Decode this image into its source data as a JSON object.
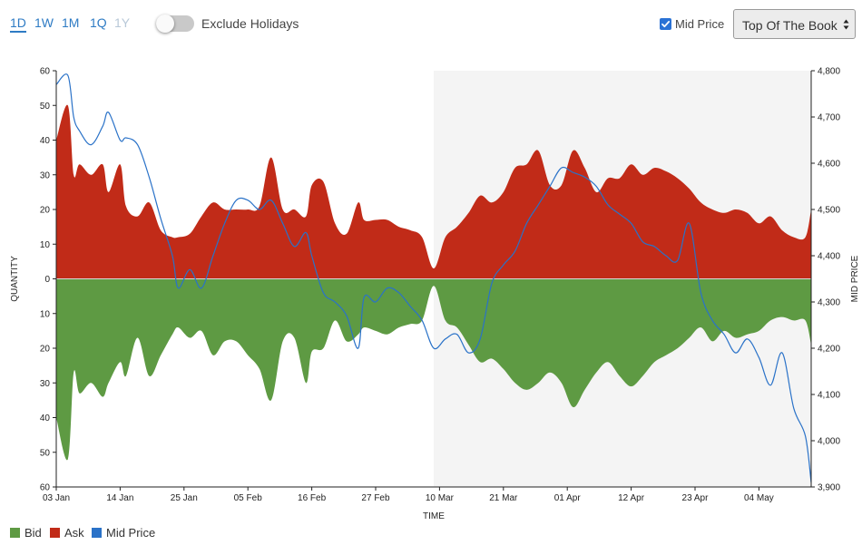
{
  "toolbar": {
    "ranges": [
      "1D",
      "1W",
      "1M",
      "1Q",
      "1Y"
    ],
    "exclude_holidays_label": "Exclude Holidays",
    "mid_price_label": "Mid Price",
    "book_select_value": "Top Of The Book"
  },
  "colors": {
    "bid": "#5e9a43",
    "ask": "#c12b18",
    "mid_price": "#2a72c8",
    "accent": "#2e7bc4",
    "highlight_band": "#f4f4f4"
  },
  "chart_data": {
    "type": "area",
    "xlabel": "TIME",
    "ylabel_left": "QUANTITY",
    "ylabel_right": "MID PRICE",
    "x_ticks": [
      "03 Jan",
      "14 Jan",
      "25 Jan",
      "05 Feb",
      "16 Feb",
      "27 Feb",
      "10 Mar",
      "21 Mar",
      "01 Apr",
      "12 Apr",
      "23 Apr",
      "04 May"
    ],
    "left_ticks": [
      "60",
      "50",
      "40",
      "30",
      "20",
      "10",
      "0",
      "10",
      "20",
      "30",
      "40",
      "50",
      "60"
    ],
    "right_ticks": [
      "4,800",
      "4,700",
      "4,600",
      "4,500",
      "4,400",
      "4,300",
      "4,200",
      "4,100",
      "4,000",
      "3,900"
    ],
    "quantity_range": [
      -60,
      60
    ],
    "price_range": [
      3900,
      4800
    ],
    "x_range": [
      "2019-01-03",
      "2019-05-13"
    ],
    "highlight_range": [
      "2019-03-09",
      "2019-05-13"
    ],
    "legend": [
      "Bid",
      "Ask",
      "Mid Price"
    ],
    "x": [
      "2019-01-03",
      "2019-01-05",
      "2019-01-06",
      "2019-01-07",
      "2019-01-09",
      "2019-01-11",
      "2019-01-12",
      "2019-01-14",
      "2019-01-15",
      "2019-01-17",
      "2019-01-19",
      "2019-01-21",
      "2019-01-23",
      "2019-01-24",
      "2019-01-26",
      "2019-01-28",
      "2019-01-30",
      "2019-02-01",
      "2019-02-03",
      "2019-02-05",
      "2019-02-07",
      "2019-02-09",
      "2019-02-11",
      "2019-02-13",
      "2019-02-15",
      "2019-02-16",
      "2019-02-18",
      "2019-02-20",
      "2019-02-22",
      "2019-02-24",
      "2019-02-25",
      "2019-02-27",
      "2019-03-01",
      "2019-03-03",
      "2019-03-05",
      "2019-03-07",
      "2019-03-09",
      "2019-03-11",
      "2019-03-13",
      "2019-03-15",
      "2019-03-17",
      "2019-03-19",
      "2019-03-21",
      "2019-03-23",
      "2019-03-25",
      "2019-03-27",
      "2019-03-29",
      "2019-03-31",
      "2019-04-02",
      "2019-04-04",
      "2019-04-06",
      "2019-04-08",
      "2019-04-10",
      "2019-04-12",
      "2019-04-14",
      "2019-04-16",
      "2019-04-18",
      "2019-04-20",
      "2019-04-22",
      "2019-04-24",
      "2019-04-26",
      "2019-04-28",
      "2019-04-30",
      "2019-05-02",
      "2019-05-04",
      "2019-05-06",
      "2019-05-08",
      "2019-05-10",
      "2019-05-12",
      "2019-05-13"
    ],
    "series": [
      {
        "name": "Ask",
        "values": [
          40,
          50,
          30,
          33,
          30,
          33,
          25,
          33,
          21,
          18,
          22,
          14,
          12,
          12,
          13,
          18,
          22,
          20,
          20,
          20,
          21,
          35,
          20,
          20,
          18,
          27,
          28,
          16,
          13,
          22,
          17,
          17,
          17,
          15,
          14,
          12,
          3,
          12,
          15,
          19,
          24,
          22,
          25,
          32,
          33,
          37,
          27,
          27,
          37,
          32,
          25,
          29,
          29,
          33,
          30,
          32,
          31,
          29,
          26,
          22,
          20,
          19,
          20,
          19,
          16,
          18,
          14,
          12,
          12,
          20
        ]
      },
      {
        "name": "Bid",
        "values": [
          -40,
          -52,
          -27,
          -33,
          -30,
          -34,
          -30,
          -24,
          -28,
          -17,
          -28,
          -22,
          -16,
          -14,
          -17,
          -15,
          -22,
          -18,
          -18,
          -22,
          -26,
          -35,
          -18,
          -17,
          -30,
          -21,
          -20,
          -12,
          -18,
          -16,
          -14,
          -15,
          -16,
          -14,
          -13,
          -12,
          -2,
          -12,
          -14,
          -19,
          -24,
          -23,
          -26,
          -30,
          -32,
          -30,
          -27,
          -30,
          -37,
          -32,
          -27,
          -24,
          -28,
          -31,
          -28,
          -24,
          -22,
          -20,
          -17,
          -14,
          -18,
          -15,
          -17,
          -16,
          -15,
          -12,
          -11,
          -12,
          -12,
          -19
        ]
      },
      {
        "name": "Mid Price",
        "values": [
          4770,
          4790,
          4700,
          4670,
          4640,
          4680,
          4710,
          4650,
          4655,
          4640,
          4570,
          4480,
          4400,
          4330,
          4370,
          4330,
          4400,
          4470,
          4520,
          4520,
          4500,
          4520,
          4470,
          4420,
          4450,
          4400,
          4320,
          4300,
          4270,
          4200,
          4310,
          4300,
          4330,
          4320,
          4290,
          4260,
          4200,
          4220,
          4230,
          4190,
          4220,
          4340,
          4380,
          4410,
          4470,
          4510,
          4550,
          4590,
          4580,
          4570,
          4550,
          4510,
          4490,
          4470,
          4430,
          4420,
          4400,
          4390,
          4470,
          4320,
          4260,
          4230,
          4190,
          4220,
          4180,
          4120,
          4190,
          4070,
          4010,
          3910
        ]
      }
    ]
  }
}
